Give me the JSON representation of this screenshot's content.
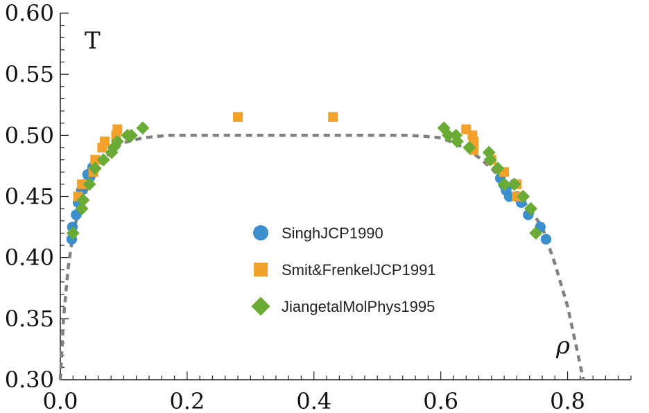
{
  "chart_data": {
    "type": "scatter",
    "xlabel": "ρ",
    "ylabel": "T",
    "xlim": [
      0.0,
      0.9
    ],
    "ylim": [
      0.3,
      0.6
    ],
    "x_ticks": [
      "0.0",
      "0.2",
      "0.4",
      "0.6",
      "0.8"
    ],
    "x_tick_values": [
      0.0,
      0.2,
      0.4,
      0.6,
      0.8
    ],
    "y_ticks": [
      "0.30",
      "0.35",
      "0.40",
      "0.45",
      "0.50",
      "0.55",
      "0.60"
    ],
    "y_tick_values": [
      0.3,
      0.35,
      0.4,
      0.45,
      0.5,
      0.55,
      0.6
    ],
    "grid": false,
    "legend_position": "center",
    "series": [
      {
        "name": "SinghJCP1990",
        "marker": "circle",
        "color": "#3a8fcc",
        "points": [
          [
            0.018,
            0.415
          ],
          [
            0.019,
            0.425
          ],
          [
            0.025,
            0.435
          ],
          [
            0.028,
            0.445
          ],
          [
            0.033,
            0.455
          ],
          [
            0.038,
            0.46
          ],
          [
            0.043,
            0.468
          ],
          [
            0.047,
            0.466
          ],
          [
            0.051,
            0.474
          ],
          [
            0.694,
            0.465
          ],
          [
            0.699,
            0.46
          ],
          [
            0.703,
            0.455
          ],
          [
            0.708,
            0.45
          ],
          [
            0.716,
            0.46
          ],
          [
            0.72,
            0.45
          ],
          [
            0.727,
            0.445
          ],
          [
            0.738,
            0.435
          ],
          [
            0.757,
            0.425
          ],
          [
            0.766,
            0.415
          ]
        ]
      },
      {
        "name": "Smit&FrenkelJCP1991",
        "marker": "square",
        "color": "#f2a22a",
        "points": [
          [
            0.028,
            0.45
          ],
          [
            0.034,
            0.46
          ],
          [
            0.052,
            0.47
          ],
          [
            0.055,
            0.48
          ],
          [
            0.066,
            0.49
          ],
          [
            0.07,
            0.495
          ],
          [
            0.088,
            0.5
          ],
          [
            0.09,
            0.505
          ],
          [
            0.28,
            0.515
          ],
          [
            0.43,
            0.515
          ],
          [
            0.64,
            0.505
          ],
          [
            0.65,
            0.5
          ],
          [
            0.652,
            0.495
          ],
          [
            0.652,
            0.488
          ],
          [
            0.68,
            0.48
          ],
          [
            0.7,
            0.47
          ],
          [
            0.72,
            0.46
          ],
          [
            0.72,
            0.45
          ]
        ]
      },
      {
        "name": "JiangetalMolPhys1995",
        "marker": "diamond",
        "color": "#6aab35",
        "points": [
          [
            0.02,
            0.42
          ],
          [
            0.034,
            0.44
          ],
          [
            0.036,
            0.447
          ],
          [
            0.046,
            0.46
          ],
          [
            0.055,
            0.473
          ],
          [
            0.068,
            0.48
          ],
          [
            0.081,
            0.486
          ],
          [
            0.084,
            0.49
          ],
          [
            0.09,
            0.495
          ],
          [
            0.106,
            0.5
          ],
          [
            0.112,
            0.5
          ],
          [
            0.13,
            0.506
          ],
          [
            0.605,
            0.506
          ],
          [
            0.612,
            0.5
          ],
          [
            0.624,
            0.5
          ],
          [
            0.626,
            0.495
          ],
          [
            0.645,
            0.49
          ],
          [
            0.676,
            0.486
          ],
          [
            0.678,
            0.48
          ],
          [
            0.69,
            0.473
          ],
          [
            0.7,
            0.46
          ],
          [
            0.716,
            0.46
          ],
          [
            0.73,
            0.45
          ],
          [
            0.742,
            0.44
          ],
          [
            0.75,
            0.42
          ]
        ]
      }
    ],
    "curve": {
      "style": "dashed",
      "color": "#808080",
      "points": [
        [
          0.0,
          0.3
        ],
        [
          0.005,
          0.35
        ],
        [
          0.012,
          0.39
        ],
        [
          0.02,
          0.42
        ],
        [
          0.03,
          0.44
        ],
        [
          0.045,
          0.46
        ],
        [
          0.06,
          0.475
        ],
        [
          0.08,
          0.487
        ],
        [
          0.1,
          0.494
        ],
        [
          0.13,
          0.498
        ],
        [
          0.17,
          0.5
        ],
        [
          0.25,
          0.5
        ],
        [
          0.4,
          0.5
        ],
        [
          0.55,
          0.5
        ],
        [
          0.58,
          0.499
        ],
        [
          0.6,
          0.498
        ],
        [
          0.62,
          0.494
        ],
        [
          0.64,
          0.489
        ],
        [
          0.66,
          0.482
        ],
        [
          0.68,
          0.473
        ],
        [
          0.7,
          0.462
        ],
        [
          0.72,
          0.452
        ],
        [
          0.74,
          0.44
        ],
        [
          0.76,
          0.425
        ],
        [
          0.78,
          0.395
        ],
        [
          0.8,
          0.36
        ],
        [
          0.825,
          0.3
        ]
      ]
    }
  }
}
